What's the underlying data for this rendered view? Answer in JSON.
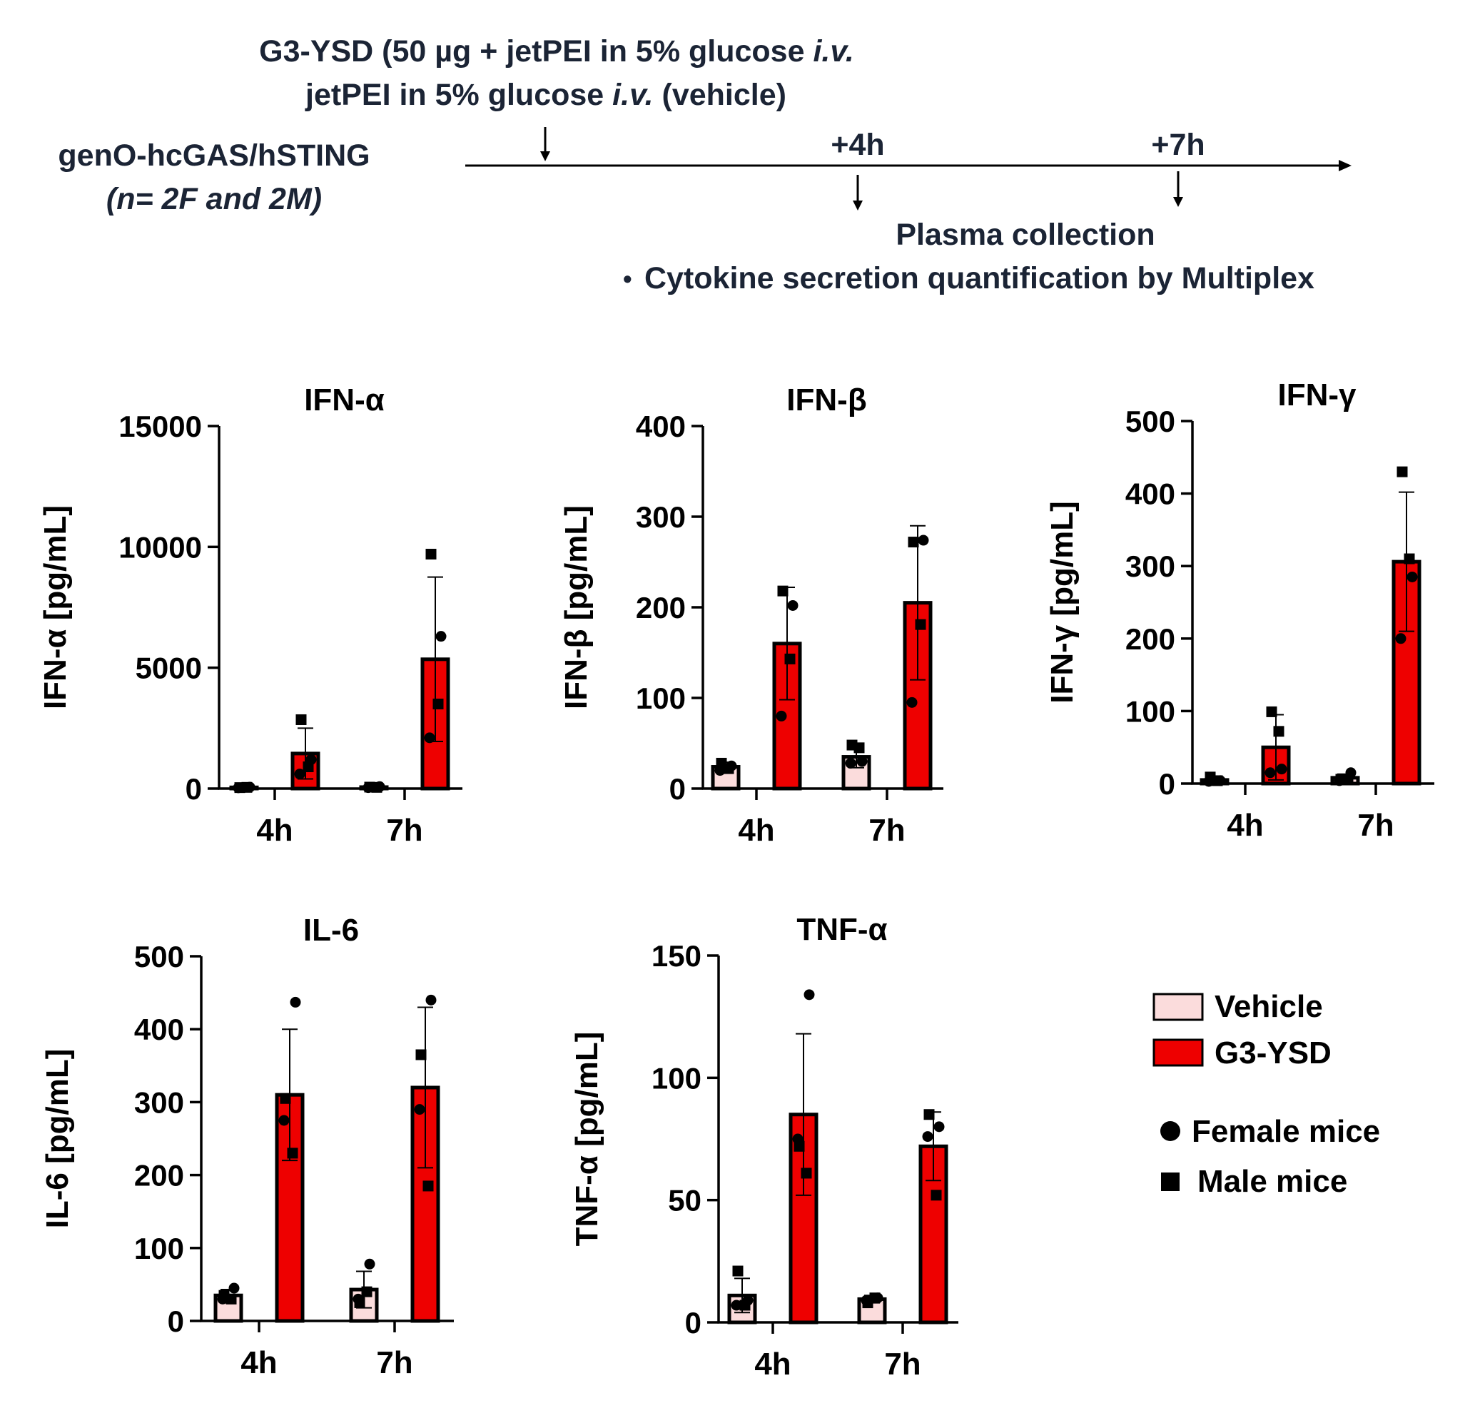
{
  "header": {
    "line1_prefix": "G3-YSD (50 µg + jetPEI in 5% glucose ",
    "line1_italic": "i.v.",
    "line2_prefix": "jetPEI in 5% glucose ",
    "line2_italic": "i.v.",
    "line2_suffix": " (vehicle)",
    "model": "genO-hcGAS/hSTING",
    "cohort": "(n= 2F and 2M)",
    "t4": "+4h",
    "t7": "+7h",
    "collection": "Plasma collection",
    "bullet": "•",
    "quantification": "Cytokine secretion quantification by Multiplex"
  },
  "legend": {
    "vehicle": "Vehicle",
    "g3ysd": "G3-YSD",
    "female": "Female mice",
    "male": "Male mice"
  },
  "colors": {
    "vehicle": "#fbdcdc",
    "g3ysd": "#ee0000",
    "outline": "#000000",
    "header_text": "#1b2435"
  },
  "chart_data": [
    {
      "type": "bar",
      "title": "IFN-α",
      "ylabel": "IFN-α [pg/mL]",
      "categories": [
        "4h",
        "7h"
      ],
      "ylim": [
        0,
        15000
      ],
      "yticks": [
        0,
        5000,
        10000,
        15000
      ],
      "series": [
        {
          "name": "Vehicle",
          "values": [
            50,
            60
          ],
          "sd": [
            25,
            25
          ],
          "points": [
            [
              {
                "v": 60,
                "s": "f"
              },
              {
                "v": 30,
                "s": "f"
              },
              {
                "v": 40,
                "s": "m"
              },
              {
                "v": 50,
                "s": "m"
              }
            ],
            [
              {
                "v": 80,
                "s": "f"
              },
              {
                "v": 40,
                "s": "f"
              },
              {
                "v": 60,
                "s": "m"
              },
              {
                "v": 50,
                "s": "m"
              }
            ]
          ]
        },
        {
          "name": "G3-YSD",
          "values": [
            1450,
            5350
          ],
          "sd": [
            1050,
            3400
          ],
          "points": [
            [
              {
                "v": 1200,
                "s": "f"
              },
              {
                "v": 600,
                "s": "f"
              },
              {
                "v": 2850,
                "s": "m"
              },
              {
                "v": 900,
                "s": "m"
              }
            ],
            [
              {
                "v": 6300,
                "s": "f"
              },
              {
                "v": 2100,
                "s": "f"
              },
              {
                "v": 9700,
                "s": "m"
              },
              {
                "v": 3500,
                "s": "m"
              }
            ]
          ]
        }
      ]
    },
    {
      "type": "bar",
      "title": "IFN-β",
      "ylabel": "IFN-β [pg/mL]",
      "categories": [
        "4h",
        "7h"
      ],
      "ylim": [
        0,
        400
      ],
      "yticks": [
        0,
        100,
        200,
        300,
        400
      ],
      "series": [
        {
          "name": "Vehicle",
          "values": [
            24,
            35
          ],
          "sd": [
            5,
            12
          ],
          "points": [
            [
              {
                "v": 25,
                "s": "f"
              },
              {
                "v": 20,
                "s": "f"
              },
              {
                "v": 28,
                "s": "m"
              },
              {
                "v": 22,
                "s": "m"
              }
            ],
            [
              {
                "v": 30,
                "s": "f"
              },
              {
                "v": 28,
                "s": "f"
              },
              {
                "v": 48,
                "s": "m"
              },
              {
                "v": 45,
                "s": "m"
              }
            ]
          ]
        },
        {
          "name": "G3-YSD",
          "values": [
            160,
            205
          ],
          "sd": [
            62,
            85
          ],
          "points": [
            [
              {
                "v": 202,
                "s": "f"
              },
              {
                "v": 80,
                "s": "f"
              },
              {
                "v": 218,
                "s": "m"
              },
              {
                "v": 143,
                "s": "m"
              }
            ],
            [
              {
                "v": 274,
                "s": "f"
              },
              {
                "v": 95,
                "s": "f"
              },
              {
                "v": 272,
                "s": "m"
              },
              {
                "v": 181,
                "s": "m"
              }
            ]
          ]
        }
      ]
    },
    {
      "type": "bar",
      "title": "IFN-γ",
      "ylabel": "IFN-γ [pg/mL]",
      "categories": [
        "4h",
        "7h"
      ],
      "ylim": [
        0,
        500
      ],
      "yticks": [
        0,
        100,
        200,
        300,
        400,
        500
      ],
      "series": [
        {
          "name": "Vehicle",
          "values": [
            5,
            8
          ],
          "sd": [
            3,
            5
          ],
          "points": [
            [
              {
                "v": 4,
                "s": "f"
              },
              {
                "v": 3,
                "s": "f"
              },
              {
                "v": 9,
                "s": "m"
              },
              {
                "v": 4,
                "s": "m"
              }
            ],
            [
              {
                "v": 15,
                "s": "f"
              },
              {
                "v": 4,
                "s": "f"
              },
              {
                "v": 6,
                "s": "m"
              },
              {
                "v": 6,
                "s": "m"
              }
            ]
          ]
        },
        {
          "name": "G3-YSD",
          "values": [
            50,
            306
          ],
          "sd": [
            45,
            96
          ],
          "points": [
            [
              {
                "v": 20,
                "s": "f"
              },
              {
                "v": 15,
                "s": "f"
              },
              {
                "v": 99,
                "s": "m"
              },
              {
                "v": 72,
                "s": "m"
              }
            ],
            [
              {
                "v": 285,
                "s": "f"
              },
              {
                "v": 200,
                "s": "f"
              },
              {
                "v": 430,
                "s": "m"
              },
              {
                "v": 310,
                "s": "m"
              }
            ]
          ]
        }
      ]
    },
    {
      "type": "bar",
      "title": "IL-6",
      "ylabel": "IL-6 [pg/mL]",
      "categories": [
        "4h",
        "7h"
      ],
      "ylim": [
        0,
        500
      ],
      "yticks": [
        0,
        100,
        200,
        300,
        400,
        500
      ],
      "series": [
        {
          "name": "Vehicle",
          "values": [
            35,
            43
          ],
          "sd": [
            8,
            25
          ],
          "points": [
            [
              {
                "v": 45,
                "s": "f"
              },
              {
                "v": 30,
                "s": "f"
              },
              {
                "v": 35,
                "s": "m"
              },
              {
                "v": 30,
                "s": "m"
              }
            ],
            [
              {
                "v": 78,
                "s": "f"
              },
              {
                "v": 30,
                "s": "f"
              },
              {
                "v": 25,
                "s": "m"
              },
              {
                "v": 40,
                "s": "m"
              }
            ]
          ]
        },
        {
          "name": "G3-YSD",
          "values": [
            310,
            320
          ],
          "sd": [
            90,
            110
          ],
          "points": [
            [
              {
                "v": 437,
                "s": "f"
              },
              {
                "v": 275,
                "s": "f"
              },
              {
                "v": 305,
                "s": "m"
              },
              {
                "v": 230,
                "s": "m"
              }
            ],
            [
              {
                "v": 440,
                "s": "f"
              },
              {
                "v": 290,
                "s": "f"
              },
              {
                "v": 365,
                "s": "m"
              },
              {
                "v": 185,
                "s": "m"
              }
            ]
          ]
        }
      ]
    },
    {
      "type": "bar",
      "title": "TNF-α",
      "ylabel": "TNF-α [pg/mL]",
      "categories": [
        "4h",
        "7h"
      ],
      "ylim": [
        0,
        150
      ],
      "yticks": [
        0,
        50,
        100,
        150
      ],
      "series": [
        {
          "name": "Vehicle",
          "values": [
            11,
            9.5
          ],
          "sd": [
            7,
            1.5
          ],
          "points": [
            [
              {
                "v": 9,
                "s": "f"
              },
              {
                "v": 7,
                "s": "f"
              },
              {
                "v": 21,
                "s": "m"
              },
              {
                "v": 7,
                "s": "m"
              }
            ],
            [
              {
                "v": 10,
                "s": "f"
              },
              {
                "v": 9,
                "s": "f"
              },
              {
                "v": 8,
                "s": "m"
              },
              {
                "v": 10,
                "s": "m"
              }
            ]
          ]
        },
        {
          "name": "G3-YSD",
          "values": [
            85,
            72
          ],
          "sd": [
            33,
            14
          ],
          "points": [
            [
              {
                "v": 134,
                "s": "f"
              },
              {
                "v": 75,
                "s": "f"
              },
              {
                "v": 72,
                "s": "m"
              },
              {
                "v": 61,
                "s": "m"
              }
            ],
            [
              {
                "v": 80,
                "s": "f"
              },
              {
                "v": 76,
                "s": "f"
              },
              {
                "v": 85,
                "s": "m"
              },
              {
                "v": 52,
                "s": "m"
              }
            ]
          ]
        }
      ]
    }
  ]
}
